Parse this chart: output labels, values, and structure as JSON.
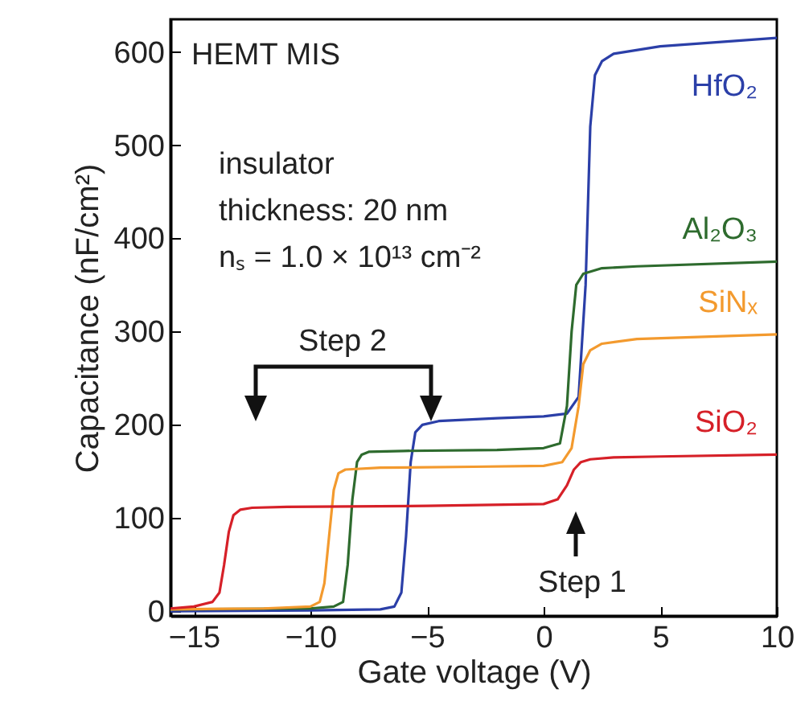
{
  "chart_data": {
    "type": "line",
    "xlabel": "Gate voltage (V)",
    "ylabel": "Capacitance (nF/cm²)",
    "xlim": [
      -16,
      10
    ],
    "ylim": [
      -5,
      635
    ],
    "xticks": [
      -15,
      -10,
      -5,
      0,
      5,
      10
    ],
    "yticks": [
      0,
      100,
      200,
      300,
      400,
      500,
      600
    ],
    "grid": false,
    "line_style": "solid",
    "marker": "none",
    "series": [
      {
        "name": "HfO₂",
        "color": "#2b3fa8",
        "x": [
          -16,
          -10,
          -7,
          -6.4,
          -6.1,
          -5.9,
          -5.7,
          -5.5,
          -5.2,
          -4.5,
          -2,
          0,
          1.0,
          1.5,
          1.8,
          2.0,
          2.2,
          2.5,
          3,
          5,
          10
        ],
        "values": [
          0,
          1,
          2,
          5,
          20,
          80,
          160,
          192,
          200,
          204,
          207,
          209,
          212,
          230,
          350,
          520,
          575,
          590,
          598,
          606,
          615
        ]
      },
      {
        "name": "Al₂O₃",
        "color": "#2e6b2e",
        "x": [
          -16,
          -10,
          -9,
          -8.6,
          -8.4,
          -8.2,
          -8.0,
          -7.8,
          -7.5,
          -6,
          -2,
          0,
          0.7,
          1.0,
          1.2,
          1.4,
          1.7,
          2.5,
          4,
          10
        ],
        "values": [
          2,
          3,
          5,
          10,
          50,
          120,
          160,
          168,
          171,
          172,
          173,
          175,
          180,
          220,
          300,
          350,
          362,
          368,
          370,
          375
        ]
      },
      {
        "name": "SiNₓ",
        "color": "#f39a2e",
        "x": [
          -16,
          -12,
          -10,
          -9.6,
          -9.4,
          -9.2,
          -9.0,
          -8.8,
          -8.5,
          -7,
          -3,
          0,
          0.8,
          1.2,
          1.5,
          1.7,
          2.0,
          2.5,
          4,
          10
        ],
        "values": [
          2,
          3,
          5,
          10,
          30,
          80,
          130,
          148,
          152,
          154,
          155,
          156,
          160,
          175,
          220,
          265,
          280,
          287,
          292,
          297
        ]
      },
      {
        "name": "SiO₂",
        "color": "#d62028",
        "x": [
          -16,
          -15,
          -14.2,
          -13.9,
          -13.7,
          -13.5,
          -13.3,
          -13.0,
          -12.5,
          -11,
          -5,
          0,
          0.6,
          1.0,
          1.3,
          1.6,
          2.0,
          3,
          5,
          10
        ],
        "values": [
          3,
          5,
          10,
          20,
          50,
          85,
          103,
          109,
          111,
          112,
          113,
          115,
          120,
          135,
          152,
          160,
          163,
          165,
          166,
          168
        ]
      }
    ],
    "annotations": [
      "HEMT MIS",
      "insulator\nthickness: 20 nm",
      "nₛ = 1.0 × 10¹³ cm⁻²",
      "Step 2",
      "Step 1"
    ]
  }
}
